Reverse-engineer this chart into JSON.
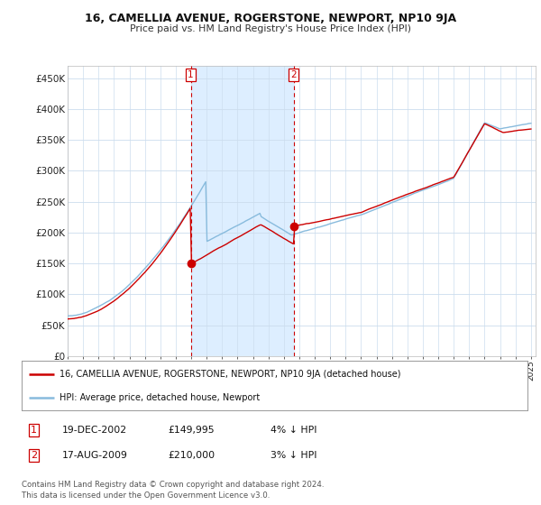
{
  "title": "16, CAMELLIA AVENUE, ROGERSTONE, NEWPORT, NP10 9JA",
  "subtitle": "Price paid vs. HM Land Registry's House Price Index (HPI)",
  "ylabel_ticks": [
    "£0",
    "£50K",
    "£100K",
    "£150K",
    "£200K",
    "£250K",
    "£300K",
    "£350K",
    "£400K",
    "£450K"
  ],
  "ytick_values": [
    0,
    50000,
    100000,
    150000,
    200000,
    250000,
    300000,
    350000,
    400000,
    450000
  ],
  "ylim": [
    0,
    470000
  ],
  "xlim_start": 1995.0,
  "xlim_end": 2025.3,
  "marker1_x": 2002.97,
  "marker1_y": 149995,
  "marker2_x": 2009.63,
  "marker2_y": 210000,
  "sale_color": "#cc0000",
  "hpi_color": "#88bbdd",
  "shade_color": "#ddeeff",
  "legend1_label": "16, CAMELLIA AVENUE, ROGERSTONE, NEWPORT, NP10 9JA (detached house)",
  "legend2_label": "HPI: Average price, detached house, Newport",
  "table_rows": [
    [
      "1",
      "19-DEC-2002",
      "£149,995",
      "4% ↓ HPI"
    ],
    [
      "2",
      "17-AUG-2009",
      "£210,000",
      "3% ↓ HPI"
    ]
  ],
  "footnote1": "Contains HM Land Registry data © Crown copyright and database right 2024.",
  "footnote2": "This data is licensed under the Open Government Licence v3.0.",
  "background_color": "#ffffff",
  "plot_bg_color": "#ffffff",
  "grid_color": "#ccddee"
}
